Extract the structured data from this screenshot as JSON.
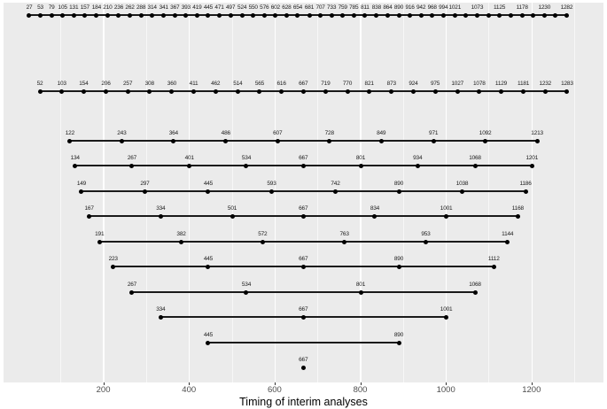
{
  "chart_data": {
    "type": "scatter",
    "title": "",
    "xlabel": "Timing of interim analyses",
    "ylabel": "",
    "xlim": [
      -33,
      1368
    ],
    "x_major_ticks": [
      200,
      400,
      600,
      800,
      1000,
      1200
    ],
    "x_minor_gridlines": [
      100,
      300,
      500,
      700,
      900,
      1100,
      1300
    ],
    "grid": "on",
    "legend": "none",
    "point_color": "#000000",
    "line_color": "#1a1a1a",
    "panel_background": "#EBEBEB",
    "grid_color": "#FFFFFF",
    "tick_label_color": "#4D4D4D",
    "rows": [
      {
        "n_analyses": 49,
        "values": [
          27,
          53,
          79,
          105,
          131,
          157,
          184,
          210,
          236,
          262,
          288,
          314,
          341,
          367,
          393,
          419,
          445,
          471,
          497,
          524,
          550,
          576,
          602,
          628,
          654,
          681,
          707,
          733,
          759,
          785,
          811,
          838,
          864,
          890,
          916,
          942,
          968,
          994,
          1021,
          1047,
          1073,
          1099,
          1125,
          1151,
          1178,
          1204,
          1230,
          1256,
          1282
        ],
        "unlabeled_values": [
          1047,
          1099,
          1151,
          1204,
          1256
        ]
      },
      {
        "n_analyses": 25,
        "values": [
          52,
          103,
          154,
          206,
          257,
          308,
          360,
          411,
          462,
          514,
          565,
          616,
          667,
          719,
          770,
          821,
          873,
          924,
          975,
          1027,
          1078,
          1129,
          1181,
          1232,
          1283
        ],
        "unlabeled_values": []
      },
      {
        "n_analyses": 10,
        "values": [
          122,
          243,
          364,
          486,
          607,
          728,
          849,
          971,
          1092,
          1213
        ],
        "unlabeled_values": []
      },
      {
        "n_analyses": 9,
        "values": [
          134,
          267,
          401,
          534,
          667,
          801,
          934,
          1068,
          1201
        ],
        "unlabeled_values": []
      },
      {
        "n_analyses": 8,
        "values": [
          149,
          297,
          445,
          593,
          742,
          890,
          1038,
          1186
        ],
        "unlabeled_values": []
      },
      {
        "n_analyses": 7,
        "values": [
          167,
          334,
          501,
          667,
          834,
          1001,
          1168
        ],
        "unlabeled_values": []
      },
      {
        "n_analyses": 6,
        "values": [
          191,
          382,
          572,
          763,
          953,
          1144
        ],
        "unlabeled_values": []
      },
      {
        "n_analyses": 5,
        "values": [
          223,
          445,
          667,
          890,
          1112
        ],
        "unlabeled_values": []
      },
      {
        "n_analyses": 4,
        "values": [
          267,
          534,
          801,
          1068
        ],
        "unlabeled_values": []
      },
      {
        "n_analyses": 3,
        "values": [
          334,
          667,
          1001
        ],
        "unlabeled_values": []
      },
      {
        "n_analyses": 2,
        "values": [
          445,
          890
        ],
        "unlabeled_values": []
      },
      {
        "n_analyses": 1,
        "values": [
          667
        ],
        "unlabeled_values": []
      }
    ]
  }
}
